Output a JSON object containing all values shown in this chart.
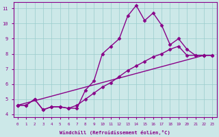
{
  "xlabel": "Windchill (Refroidissement éolien,°C)",
  "bg_color": "#cce8e8",
  "line_color": "#880088",
  "grid_color": "#99cccc",
  "xlim": [
    -0.5,
    23.5
  ],
  "ylim": [
    3.8,
    11.4
  ],
  "xticks": [
    0,
    1,
    2,
    3,
    4,
    5,
    6,
    7,
    8,
    9,
    10,
    11,
    12,
    13,
    14,
    15,
    16,
    17,
    18,
    19,
    20,
    21,
    22,
    23
  ],
  "yticks": [
    4,
    5,
    6,
    7,
    8,
    9,
    10,
    11
  ],
  "line1_x": [
    0,
    1,
    2,
    3,
    4,
    5,
    6,
    7,
    8,
    9,
    10,
    11,
    12,
    13,
    14,
    15,
    16,
    17,
    18,
    19,
    20,
    21,
    22
  ],
  "line1_y": [
    4.6,
    4.6,
    5.0,
    4.3,
    4.5,
    4.5,
    4.4,
    4.4,
    5.6,
    6.2,
    8.0,
    8.5,
    9.0,
    10.5,
    11.2,
    10.2,
    10.7,
    9.9,
    8.6,
    9.0,
    8.3,
    7.9,
    7.9
  ],
  "line2_x": [
    0,
    1,
    2,
    3,
    4,
    5,
    6,
    7,
    8,
    9,
    10,
    11,
    12,
    13,
    14,
    15,
    16,
    17,
    18,
    19,
    20,
    21,
    22,
    23
  ],
  "line2_y": [
    4.6,
    4.6,
    5.0,
    4.3,
    4.5,
    4.5,
    4.4,
    4.6,
    5.0,
    5.4,
    5.8,
    6.1,
    6.5,
    6.9,
    7.2,
    7.5,
    7.8,
    8.0,
    8.3,
    8.5,
    7.9,
    7.9,
    7.9,
    7.9
  ],
  "line3_x": [
    0,
    22,
    23
  ],
  "line3_y": [
    4.6,
    7.9,
    7.9
  ],
  "marker": "D",
  "markersize": 2.5,
  "linewidth": 1.0
}
